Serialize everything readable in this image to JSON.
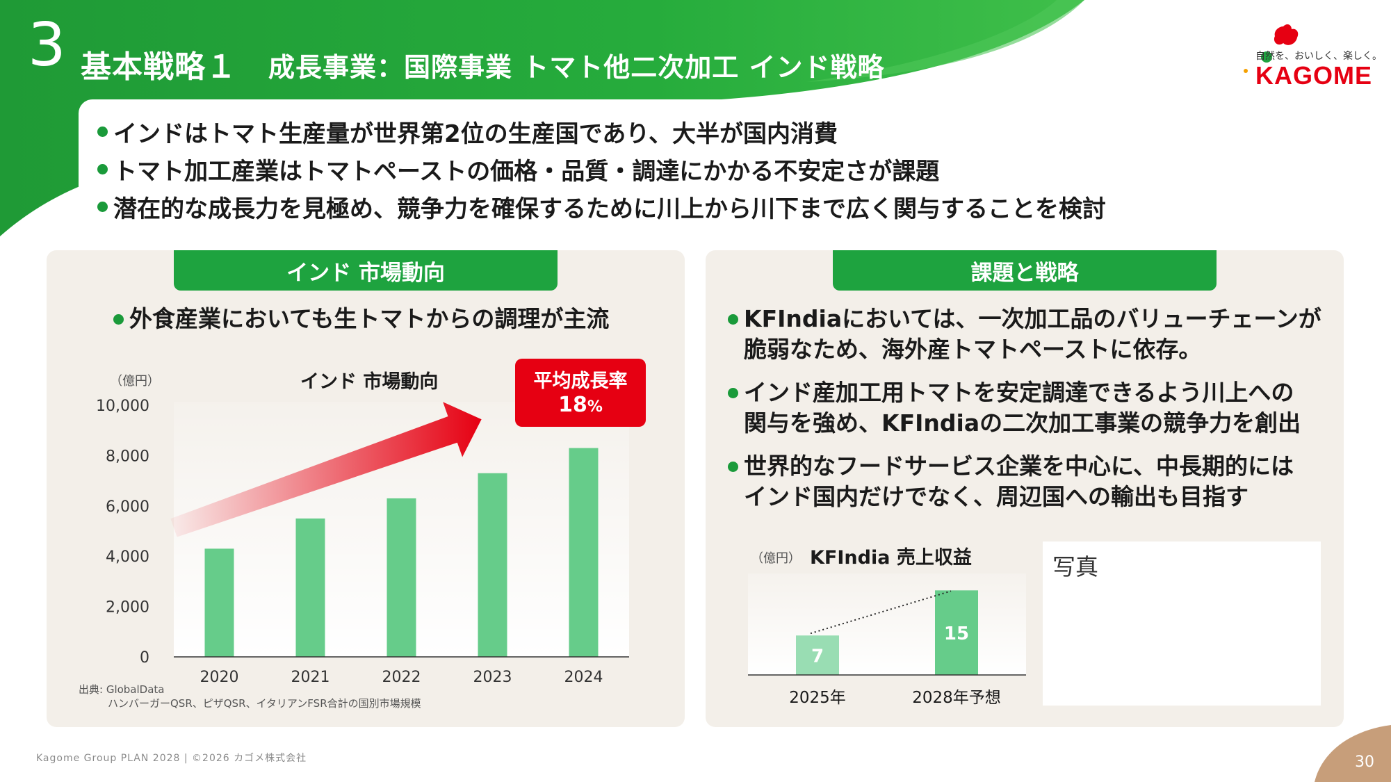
{
  "header": {
    "number": "3",
    "title": "基本戦略１",
    "subtitle": "成長事業：国際事業  トマト他二次加工  インド戦略"
  },
  "logo": {
    "tagline": "自然を、おいしく、楽しく。",
    "word": "KAGOME"
  },
  "bullets": [
    "インドはトマト生産量が世界第2位の生産国であり、大半が国内消費",
    "トマト加工産業はトマトペーストの価格・品質・調達にかかる不安定さが課題",
    "潜在的な成長力を見極め、競争力を確保するために川上から川下まで広く関与することを検討"
  ],
  "left_panel": {
    "heading": "インド  市場動向",
    "bullet": "外食産業においても生トマトからの調理が主流",
    "growth_label": "平均成長率",
    "growth_value": "18",
    "growth_unit": "%",
    "source_line1": "出典: GlobalData",
    "source_line2": "ハンバーガーQSR、ピザQSR、イタリアンFSR合計の国別市場規模"
  },
  "right_panel": {
    "heading": "課題と戦略",
    "bullets": [
      [
        "KFIndiaにおいては、一次加工品のバリューチェーンが",
        "脆弱なため、海外産トマトペーストに依存。"
      ],
      [
        "インド産加工用トマトを安定調達できるよう川上への",
        "関与を強め、KFIndiaの二次加工事業の競争力を創出"
      ],
      [
        "世界的なフードサービス企業を中心に、中長期的には",
        "インド国内だけでなく、周辺国への輸出も目指す"
      ]
    ],
    "photo_label": "写真"
  },
  "chart_data": [
    {
      "type": "bar",
      "title": "インド 市場動向",
      "ylabel": "（億円）",
      "categories": [
        "2020",
        "2021",
        "2022",
        "2023",
        "2024"
      ],
      "values": [
        4300,
        5500,
        6300,
        7300,
        8300
      ],
      "ylim": [
        0,
        10000
      ],
      "yticks": [
        0,
        2000,
        4000,
        6000,
        8000,
        10000
      ],
      "ytick_labels": [
        "0",
        "2,000",
        "4,000",
        "6,000",
        "8,000",
        "10,000"
      ],
      "bar_color": "#66cc8a",
      "annotation": "growth arrow from 2020 to 2024"
    },
    {
      "type": "bar",
      "title": "KFIndia 売上収益",
      "ylabel": "（億円）",
      "categories": [
        "2025年",
        "2028年予想"
      ],
      "values": [
        7,
        15
      ],
      "data_labels": [
        "7",
        "15"
      ],
      "ylim": [
        0,
        18
      ],
      "bar_colors": [
        "#99ddb3",
        "#66cc8a"
      ],
      "annotation": "dotted trend line between bar tops"
    }
  ],
  "footer": {
    "text": "Kagome Group PLAN 2028    |    ©2026 カゴメ株式会社",
    "page": "30"
  },
  "colors": {
    "green": "#1ea33f",
    "panel": "#f3efe9",
    "red": "#e60012",
    "corner": "#c79e7a"
  }
}
